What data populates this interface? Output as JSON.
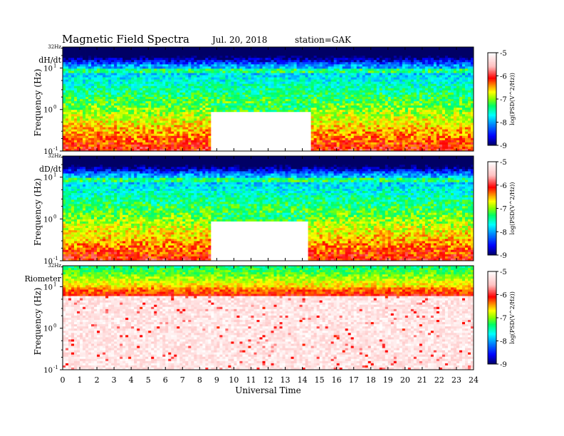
{
  "header": {
    "title": "Magnetic Field Spectra",
    "date": "Jul. 20, 2018",
    "station": "station=GAK"
  },
  "chart_data": [
    {
      "type": "heatmap",
      "panel_label": "dH/dt",
      "top_label": "32Hz",
      "ylabel": "Frequency (Hz)",
      "y_scale": "log",
      "ylim_hz": [
        0.1,
        32
      ],
      "y_tick_labels": [
        {
          "value": 0.1,
          "base": "10",
          "exp": "-1"
        },
        {
          "value": 1,
          "base": "10",
          "exp": "0"
        },
        {
          "value": 10,
          "base": "10",
          "exp": "1"
        }
      ],
      "colorbar": {
        "label": "log(PSD(V^2/Hz))",
        "range": [
          -9,
          -5
        ],
        "ticks": [
          "-5",
          "-6",
          "-7",
          "-8",
          "-9"
        ]
      },
      "features": {
        "quiet_band_hours": [
          8.7,
          14.5
        ],
        "quiet_band_top_hz": 1.0,
        "line_10hz_present": true
      }
    },
    {
      "type": "heatmap",
      "panel_label": "dD/dt",
      "top_label": "32Hz",
      "ylabel": "Frequency (Hz)",
      "y_scale": "log",
      "ylim_hz": [
        0.1,
        32
      ],
      "y_tick_labels": [
        {
          "value": 0.1,
          "base": "10",
          "exp": "-1"
        },
        {
          "value": 1,
          "base": "10",
          "exp": "0"
        },
        {
          "value": 10,
          "base": "10",
          "exp": "1"
        }
      ],
      "colorbar": {
        "label": "log(PSD(V^2/Hz))",
        "range": [
          -9,
          -5
        ],
        "ticks": [
          "-5",
          "-6",
          "-7",
          "-8",
          "-9"
        ]
      },
      "features": {
        "quiet_band_hours": [
          8.6,
          14.4
        ],
        "quiet_band_top_hz": 1.0,
        "line_10hz_present": true
      }
    },
    {
      "type": "heatmap",
      "panel_label": "Riometer",
      "top_label": "32Hz",
      "ylabel": "Frequency (Hz)",
      "y_scale": "log",
      "ylim_hz": [
        0.1,
        32
      ],
      "y_tick_labels": [
        {
          "value": 0.1,
          "base": "10",
          "exp": "-1"
        },
        {
          "value": 1,
          "base": "10",
          "exp": "0"
        },
        {
          "value": 10,
          "base": "10",
          "exp": "1"
        }
      ],
      "colorbar": {
        "label": "log(PSD(V^2/Hz))",
        "range": [
          -9,
          -5
        ],
        "ticks": [
          "-5",
          "-6",
          "-7",
          "-8",
          "-9"
        ]
      },
      "features": {
        "high_power_top_hz": 8
      }
    }
  ],
  "x_axis": {
    "label": "Universal Time",
    "range_hours": [
      0,
      24
    ],
    "tick_labels": [
      "0",
      "1",
      "2",
      "3",
      "4",
      "5",
      "6",
      "7",
      "8",
      "9",
      "10",
      "11",
      "12",
      "13",
      "14",
      "15",
      "16",
      "17",
      "18",
      "19",
      "20",
      "21",
      "22",
      "23",
      "24"
    ]
  },
  "colors": {
    "colormap": [
      "#000066",
      "#0000ff",
      "#0088ff",
      "#00ffff",
      "#00ff66",
      "#88ff00",
      "#ffff00",
      "#ff8800",
      "#ff0000",
      "#ffc0c0",
      "#ffffff"
    ]
  }
}
